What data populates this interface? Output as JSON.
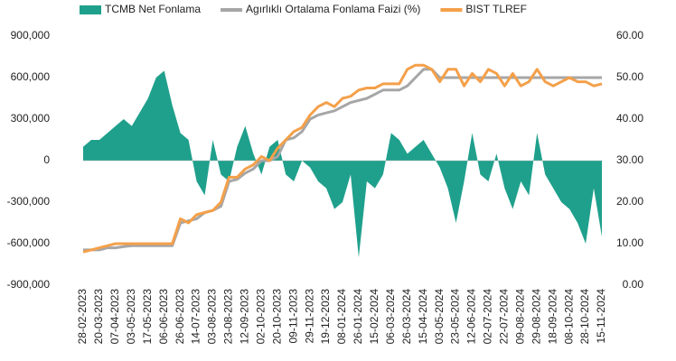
{
  "chart_data": {
    "type": "area-line",
    "categories": [
      "28-02-2023",
      null,
      "20-03-2023",
      null,
      "07-04-2023",
      null,
      "03-05-2023",
      null,
      "17-05-2023",
      null,
      "06-06-2023",
      null,
      "26-06-2023",
      null,
      "14-07-2023",
      null,
      "03-08-2023",
      null,
      "23-08-2023",
      null,
      "12-09-2023",
      null,
      "02-10-2023",
      null,
      "20-10-2023",
      null,
      "09-11-2023",
      null,
      "29-11-2023",
      null,
      "19-12-2023",
      null,
      "08-01-2024",
      null,
      "26-01-2024",
      null,
      "15-02-2024",
      null,
      "06-03-2024",
      null,
      "26-03-2024",
      null,
      "15-04-2024",
      null,
      "03-05-2024",
      null,
      "23-05-2024",
      null,
      "12-06-2024",
      null,
      "02-07-2024",
      null,
      "22-07-2024",
      null,
      "09-08-2024",
      null,
      "29-08-2024",
      null,
      "18-09-2024",
      null,
      "08-10-2024",
      null,
      "28-10-2024",
      null,
      "15-11-2024"
    ],
    "series": [
      {
        "name": "TCMB Net Fonlama",
        "color": "#1fa08c",
        "axis": "y",
        "values": [
          100000,
          150000,
          150000,
          200000,
          250000,
          300000,
          250000,
          350000,
          450000,
          600000,
          650000,
          400000,
          200000,
          150000,
          -150000,
          -250000,
          150000,
          -100000,
          -150000,
          100000,
          250000,
          50000,
          -100000,
          100000,
          150000,
          -100000,
          -150000,
          0,
          -50000,
          -150000,
          -200000,
          -350000,
          -300000,
          -100000,
          -700000,
          -150000,
          -200000,
          -100000,
          200000,
          150000,
          50000,
          100000,
          150000,
          50000,
          -50000,
          -200000,
          -450000,
          -150000,
          200000,
          -100000,
          -150000,
          50000,
          -200000,
          -350000,
          -150000,
          -250000,
          200000,
          -100000,
          -200000,
          -300000,
          -350000,
          -450000,
          -600000,
          -200000,
          -550000
        ]
      },
      {
        "name": "Agırlıklı Ortalama Fonlama Faizi (%)",
        "color": "#a6a6a6",
        "axis": "y2",
        "values": [
          8.5,
          8.5,
          8.5,
          9,
          9,
          9.3,
          9.5,
          9.5,
          9.5,
          9.5,
          9.5,
          9.5,
          15,
          15.5,
          16,
          17.5,
          18,
          19,
          25,
          25.5,
          27,
          28,
          30,
          30,
          31,
          35,
          35.5,
          37,
          40,
          41,
          41.5,
          42,
          43,
          44,
          44.5,
          45,
          46,
          47,
          47,
          47,
          48,
          50,
          52,
          52,
          50,
          50,
          50,
          50,
          50,
          50,
          50,
          50,
          50,
          50,
          50,
          50,
          50,
          50,
          50,
          50,
          50,
          50,
          50,
          50,
          50
        ]
      },
      {
        "name": "BIST TLREF",
        "color": "#f4a04a",
        "axis": "y2",
        "values": [
          8,
          8.5,
          9,
          9.5,
          10,
          10,
          10,
          10,
          10,
          10,
          10,
          10,
          16,
          15,
          17,
          17.5,
          18,
          20,
          26,
          26,
          28,
          29,
          31,
          30,
          33,
          35,
          37,
          38,
          41,
          43,
          44,
          43,
          45,
          45.5,
          47,
          47.5,
          47.5,
          48.5,
          48.5,
          48.5,
          52,
          53,
          53,
          52,
          49,
          52,
          52,
          48,
          51,
          49,
          52,
          51,
          48,
          51,
          48,
          49,
          52,
          49,
          48,
          49,
          50,
          49,
          49,
          48,
          48.5
        ]
      }
    ],
    "ylim": [
      -900000,
      900000
    ],
    "yticks": [
      {
        "value": -900000,
        "label": "-900,000"
      },
      {
        "value": -600000,
        "label": "-600,000"
      },
      {
        "value": -300000,
        "label": "-300,000"
      },
      0,
      {
        "value": 300000,
        "label": "300,000"
      },
      {
        "value": 600000,
        "label": "600,000"
      },
      {
        "value": 900000,
        "label": "900,000"
      }
    ],
    "y2lim": [
      0,
      60
    ],
    "y2ticks": [
      {
        "value": 0,
        "label": "0.00"
      },
      {
        "value": 10,
        "label": "10.00"
      },
      {
        "value": 20,
        "label": "20.00"
      },
      {
        "value": 30,
        "label": "30.00"
      },
      {
        "value": 40,
        "label": "40.00"
      },
      {
        "value": 50,
        "label": "50.00"
      },
      {
        "value": 60,
        "label": "60.00"
      }
    ],
    "legend": "top"
  }
}
